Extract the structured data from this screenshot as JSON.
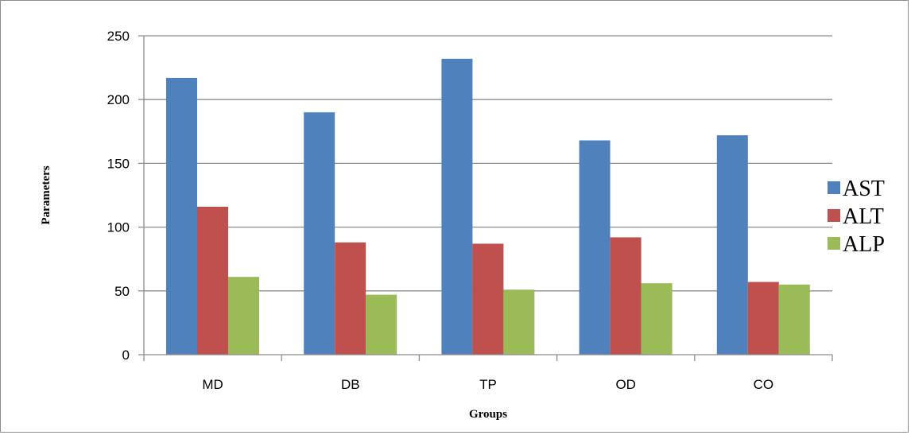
{
  "chart_data": {
    "type": "bar",
    "title": "",
    "xlabel": "Groups",
    "ylabel": "Parameters",
    "categories": [
      "MD",
      "DB",
      "TP",
      "OD",
      "CO"
    ],
    "ylim": [
      0,
      250
    ],
    "yticks": [
      0,
      50,
      100,
      150,
      200,
      250
    ],
    "grid": true,
    "legend_position": "right",
    "series": [
      {
        "name": "AST",
        "color": "#4f81bd",
        "values": [
          217,
          190,
          232,
          168,
          172
        ]
      },
      {
        "name": "ALT",
        "color": "#c0504d",
        "values": [
          116,
          88,
          87,
          92,
          57
        ]
      },
      {
        "name": "ALP",
        "color": "#9bbb59",
        "values": [
          61,
          47,
          51,
          56,
          55
        ]
      }
    ]
  }
}
